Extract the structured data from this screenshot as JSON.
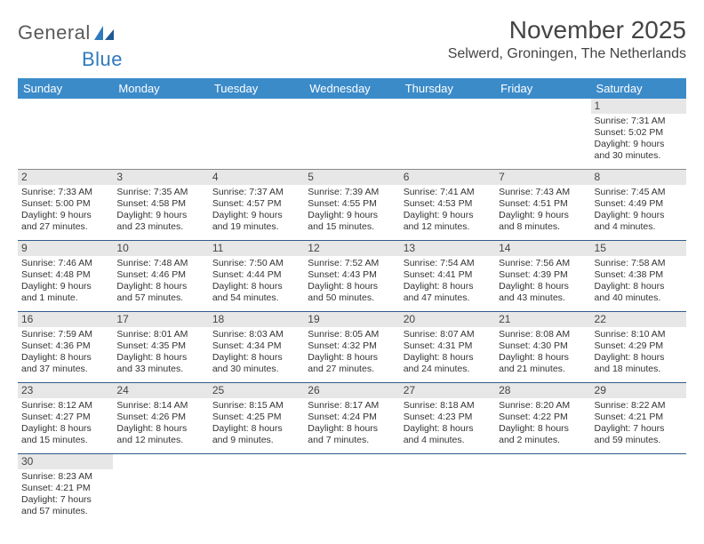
{
  "brand": {
    "part1": "General",
    "part2": "Blue"
  },
  "title": "November 2025",
  "location": "Selwerd, Groningen, The Netherlands",
  "colors": {
    "header_bg": "#3b8bc9",
    "header_text": "#ffffff",
    "row_divider": "#2f5a8a",
    "daynum_bg": "#e7e7e7",
    "brand_gray": "#5a5a5a",
    "brand_blue": "#2f79bf",
    "page_bg": "#ffffff"
  },
  "weekdays": [
    "Sunday",
    "Monday",
    "Tuesday",
    "Wednesday",
    "Thursday",
    "Friday",
    "Saturday"
  ],
  "weeks": [
    [
      null,
      null,
      null,
      null,
      null,
      null,
      {
        "d": "1",
        "sr": "Sunrise: 7:31 AM",
        "ss": "Sunset: 5:02 PM",
        "dl1": "Daylight: 9 hours",
        "dl2": "and 30 minutes."
      }
    ],
    [
      {
        "d": "2",
        "sr": "Sunrise: 7:33 AM",
        "ss": "Sunset: 5:00 PM",
        "dl1": "Daylight: 9 hours",
        "dl2": "and 27 minutes."
      },
      {
        "d": "3",
        "sr": "Sunrise: 7:35 AM",
        "ss": "Sunset: 4:58 PM",
        "dl1": "Daylight: 9 hours",
        "dl2": "and 23 minutes."
      },
      {
        "d": "4",
        "sr": "Sunrise: 7:37 AM",
        "ss": "Sunset: 4:57 PM",
        "dl1": "Daylight: 9 hours",
        "dl2": "and 19 minutes."
      },
      {
        "d": "5",
        "sr": "Sunrise: 7:39 AM",
        "ss": "Sunset: 4:55 PM",
        "dl1": "Daylight: 9 hours",
        "dl2": "and 15 minutes."
      },
      {
        "d": "6",
        "sr": "Sunrise: 7:41 AM",
        "ss": "Sunset: 4:53 PM",
        "dl1": "Daylight: 9 hours",
        "dl2": "and 12 minutes."
      },
      {
        "d": "7",
        "sr": "Sunrise: 7:43 AM",
        "ss": "Sunset: 4:51 PM",
        "dl1": "Daylight: 9 hours",
        "dl2": "and 8 minutes."
      },
      {
        "d": "8",
        "sr": "Sunrise: 7:45 AM",
        "ss": "Sunset: 4:49 PM",
        "dl1": "Daylight: 9 hours",
        "dl2": "and 4 minutes."
      }
    ],
    [
      {
        "d": "9",
        "sr": "Sunrise: 7:46 AM",
        "ss": "Sunset: 4:48 PM",
        "dl1": "Daylight: 9 hours",
        "dl2": "and 1 minute."
      },
      {
        "d": "10",
        "sr": "Sunrise: 7:48 AM",
        "ss": "Sunset: 4:46 PM",
        "dl1": "Daylight: 8 hours",
        "dl2": "and 57 minutes."
      },
      {
        "d": "11",
        "sr": "Sunrise: 7:50 AM",
        "ss": "Sunset: 4:44 PM",
        "dl1": "Daylight: 8 hours",
        "dl2": "and 54 minutes."
      },
      {
        "d": "12",
        "sr": "Sunrise: 7:52 AM",
        "ss": "Sunset: 4:43 PM",
        "dl1": "Daylight: 8 hours",
        "dl2": "and 50 minutes."
      },
      {
        "d": "13",
        "sr": "Sunrise: 7:54 AM",
        "ss": "Sunset: 4:41 PM",
        "dl1": "Daylight: 8 hours",
        "dl2": "and 47 minutes."
      },
      {
        "d": "14",
        "sr": "Sunrise: 7:56 AM",
        "ss": "Sunset: 4:39 PM",
        "dl1": "Daylight: 8 hours",
        "dl2": "and 43 minutes."
      },
      {
        "d": "15",
        "sr": "Sunrise: 7:58 AM",
        "ss": "Sunset: 4:38 PM",
        "dl1": "Daylight: 8 hours",
        "dl2": "and 40 minutes."
      }
    ],
    [
      {
        "d": "16",
        "sr": "Sunrise: 7:59 AM",
        "ss": "Sunset: 4:36 PM",
        "dl1": "Daylight: 8 hours",
        "dl2": "and 37 minutes."
      },
      {
        "d": "17",
        "sr": "Sunrise: 8:01 AM",
        "ss": "Sunset: 4:35 PM",
        "dl1": "Daylight: 8 hours",
        "dl2": "and 33 minutes."
      },
      {
        "d": "18",
        "sr": "Sunrise: 8:03 AM",
        "ss": "Sunset: 4:34 PM",
        "dl1": "Daylight: 8 hours",
        "dl2": "and 30 minutes."
      },
      {
        "d": "19",
        "sr": "Sunrise: 8:05 AM",
        "ss": "Sunset: 4:32 PM",
        "dl1": "Daylight: 8 hours",
        "dl2": "and 27 minutes."
      },
      {
        "d": "20",
        "sr": "Sunrise: 8:07 AM",
        "ss": "Sunset: 4:31 PM",
        "dl1": "Daylight: 8 hours",
        "dl2": "and 24 minutes."
      },
      {
        "d": "21",
        "sr": "Sunrise: 8:08 AM",
        "ss": "Sunset: 4:30 PM",
        "dl1": "Daylight: 8 hours",
        "dl2": "and 21 minutes."
      },
      {
        "d": "22",
        "sr": "Sunrise: 8:10 AM",
        "ss": "Sunset: 4:29 PM",
        "dl1": "Daylight: 8 hours",
        "dl2": "and 18 minutes."
      }
    ],
    [
      {
        "d": "23",
        "sr": "Sunrise: 8:12 AM",
        "ss": "Sunset: 4:27 PM",
        "dl1": "Daylight: 8 hours",
        "dl2": "and 15 minutes."
      },
      {
        "d": "24",
        "sr": "Sunrise: 8:14 AM",
        "ss": "Sunset: 4:26 PM",
        "dl1": "Daylight: 8 hours",
        "dl2": "and 12 minutes."
      },
      {
        "d": "25",
        "sr": "Sunrise: 8:15 AM",
        "ss": "Sunset: 4:25 PM",
        "dl1": "Daylight: 8 hours",
        "dl2": "and 9 minutes."
      },
      {
        "d": "26",
        "sr": "Sunrise: 8:17 AM",
        "ss": "Sunset: 4:24 PM",
        "dl1": "Daylight: 8 hours",
        "dl2": "and 7 minutes."
      },
      {
        "d": "27",
        "sr": "Sunrise: 8:18 AM",
        "ss": "Sunset: 4:23 PM",
        "dl1": "Daylight: 8 hours",
        "dl2": "and 4 minutes."
      },
      {
        "d": "28",
        "sr": "Sunrise: 8:20 AM",
        "ss": "Sunset: 4:22 PM",
        "dl1": "Daylight: 8 hours",
        "dl2": "and 2 minutes."
      },
      {
        "d": "29",
        "sr": "Sunrise: 8:22 AM",
        "ss": "Sunset: 4:21 PM",
        "dl1": "Daylight: 7 hours",
        "dl2": "and 59 minutes."
      }
    ],
    [
      {
        "d": "30",
        "sr": "Sunrise: 8:23 AM",
        "ss": "Sunset: 4:21 PM",
        "dl1": "Daylight: 7 hours",
        "dl2": "and 57 minutes."
      },
      null,
      null,
      null,
      null,
      null,
      null
    ]
  ]
}
